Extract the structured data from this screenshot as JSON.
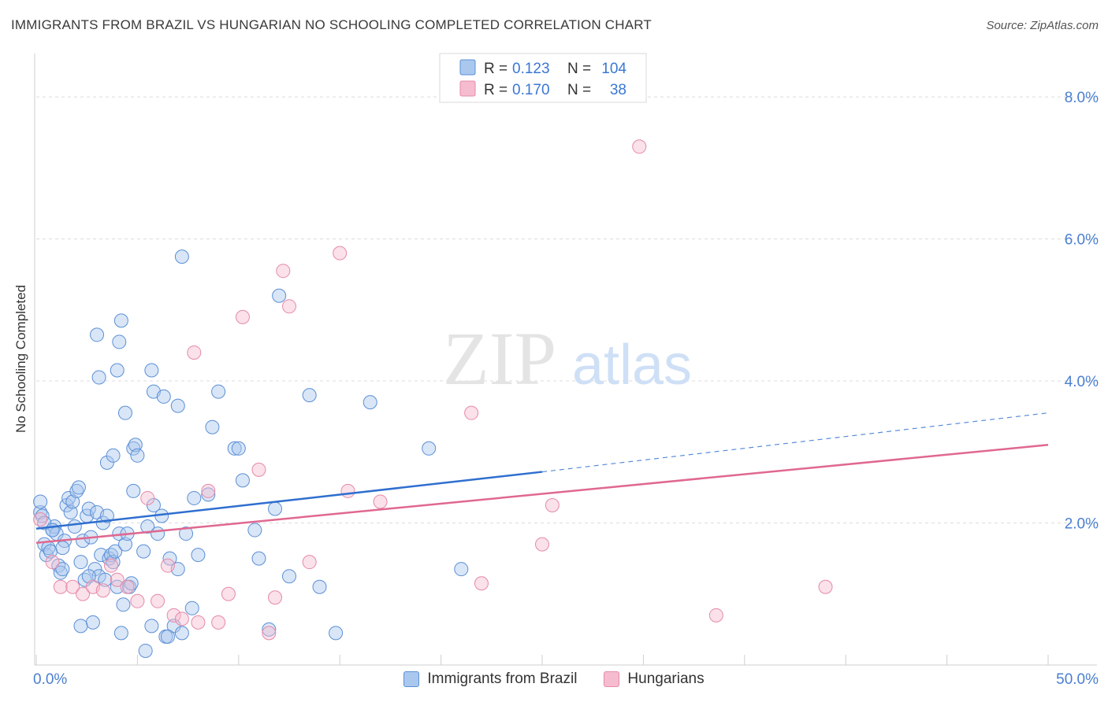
{
  "header": {
    "title": "IMMIGRANTS FROM BRAZIL VS HUNGARIAN NO SCHOOLING COMPLETED CORRELATION CHART",
    "source": "Source: ZipAtlas.com"
  },
  "watermark": {
    "zip": "ZIP",
    "atlas": "atlas"
  },
  "colors": {
    "blue_fill": "#aac8ee",
    "blue_stroke": "#5b8fd6",
    "blue_line": "#2f6fcf",
    "pink_fill": "#f5bcd0",
    "pink_stroke": "#e68aa8",
    "pink_line": "#e06890",
    "axis_label": "#4a7fd0",
    "grid": "#dcdcdc"
  },
  "legend": {
    "rows": [
      {
        "r_label": "R =",
        "r_value": "0.123",
        "n_label": "N =",
        "n_value": "104"
      },
      {
        "r_label": "R =",
        "r_value": "0.170",
        "n_label": "N =",
        "n_value": "38"
      }
    ],
    "placement": "top-center"
  },
  "chart_data": {
    "type": "scatter",
    "title": "IMMIGRANTS FROM BRAZIL VS HUNGARIAN NO SCHOOLING COMPLETED CORRELATION CHART",
    "xlabel": "",
    "ylabel": "No Schooling Completed",
    "xlim": [
      0,
      50
    ],
    "ylim": [
      0,
      8.5
    ],
    "x_tick_labels": [
      "0.0%",
      "50.0%"
    ],
    "y_ticks": [
      2,
      4,
      6,
      8
    ],
    "y_tick_labels": [
      "2.0%",
      "4.0%",
      "6.0%",
      "8.0%"
    ],
    "grid": true,
    "series": [
      {
        "name": "Immigrants from Brazil",
        "r": 0.123,
        "n": 104,
        "trend": {
          "x0": 0,
          "y0": 1.92,
          "x1": 25,
          "y1": 2.72,
          "dash_to_x": 50,
          "dash_to_y": 3.55
        },
        "points": [
          [
            0.2,
            2.15
          ],
          [
            0.3,
            2.1
          ],
          [
            0.2,
            2.3
          ],
          [
            0.4,
            1.7
          ],
          [
            0.5,
            1.55
          ],
          [
            0.6,
            1.65
          ],
          [
            0.7,
            1.6
          ],
          [
            0.8,
            1.9
          ],
          [
            0.9,
            1.95
          ],
          [
            1.0,
            1.85
          ],
          [
            1.1,
            1.4
          ],
          [
            1.2,
            1.3
          ],
          [
            1.3,
            1.35
          ],
          [
            1.4,
            1.75
          ],
          [
            1.5,
            2.25
          ],
          [
            1.6,
            2.35
          ],
          [
            1.7,
            2.15
          ],
          [
            1.8,
            2.3
          ],
          [
            1.9,
            1.95
          ],
          [
            2.0,
            2.45
          ],
          [
            2.1,
            2.5
          ],
          [
            2.2,
            1.45
          ],
          [
            2.3,
            1.75
          ],
          [
            2.4,
            1.2
          ],
          [
            2.5,
            2.1
          ],
          [
            2.6,
            2.2
          ],
          [
            2.7,
            1.8
          ],
          [
            2.8,
            0.6
          ],
          [
            2.9,
            1.35
          ],
          [
            3.0,
            2.15
          ],
          [
            3.1,
            1.25
          ],
          [
            3.2,
            1.55
          ],
          [
            3.3,
            2.0
          ],
          [
            3.4,
            1.2
          ],
          [
            3.5,
            2.1
          ],
          [
            3.6,
            1.5
          ],
          [
            3.7,
            1.55
          ],
          [
            3.8,
            1.45
          ],
          [
            3.9,
            1.6
          ],
          [
            4.0,
            1.1
          ],
          [
            4.1,
            1.85
          ],
          [
            4.2,
            0.45
          ],
          [
            4.3,
            0.85
          ],
          [
            4.4,
            1.7
          ],
          [
            4.5,
            1.85
          ],
          [
            4.6,
            1.1
          ],
          [
            4.7,
            1.15
          ],
          [
            4.8,
            3.05
          ],
          [
            4.9,
            3.1
          ],
          [
            5.0,
            2.95
          ],
          [
            5.3,
            1.6
          ],
          [
            5.5,
            1.95
          ],
          [
            5.7,
            0.55
          ],
          [
            5.8,
            2.25
          ],
          [
            6.0,
            1.85
          ],
          [
            6.2,
            2.1
          ],
          [
            6.4,
            0.4
          ],
          [
            6.6,
            1.5
          ],
          [
            6.8,
            0.55
          ],
          [
            7.0,
            1.35
          ],
          [
            7.2,
            0.45
          ],
          [
            7.4,
            1.85
          ],
          [
            7.7,
            0.8
          ],
          [
            8.0,
            1.55
          ],
          [
            3.0,
            4.65
          ],
          [
            3.1,
            4.05
          ],
          [
            4.0,
            4.15
          ],
          [
            4.1,
            4.55
          ],
          [
            4.2,
            4.85
          ],
          [
            4.4,
            3.55
          ],
          [
            5.7,
            4.15
          ],
          [
            5.8,
            3.85
          ],
          [
            6.3,
            3.78
          ],
          [
            7.0,
            3.65
          ],
          [
            7.2,
            5.75
          ],
          [
            7.8,
            2.35
          ],
          [
            8.5,
            2.4
          ],
          [
            8.7,
            3.35
          ],
          [
            9.0,
            3.85
          ],
          [
            9.8,
            3.05
          ],
          [
            10.0,
            3.05
          ],
          [
            10.2,
            2.6
          ],
          [
            10.8,
            1.9
          ],
          [
            11.0,
            1.5
          ],
          [
            11.5,
            0.5
          ],
          [
            11.8,
            2.2
          ],
          [
            12.0,
            5.2
          ],
          [
            12.5,
            1.25
          ],
          [
            13.5,
            3.8
          ],
          [
            14.0,
            1.1
          ],
          [
            14.8,
            0.45
          ],
          [
            16.5,
            3.7
          ],
          [
            19.4,
            3.05
          ],
          [
            21.0,
            1.35
          ],
          [
            3.5,
            2.85
          ],
          [
            3.8,
            2.95
          ],
          [
            4.8,
            2.45
          ],
          [
            5.4,
            0.2
          ],
          [
            6.5,
            0.4
          ],
          [
            2.2,
            0.55
          ],
          [
            1.3,
            1.65
          ],
          [
            0.4,
            2.0
          ],
          [
            0.8,
            1.9
          ],
          [
            2.6,
            1.25
          ]
        ]
      },
      {
        "name": "Hungarians",
        "r": 0.17,
        "n": 38,
        "trend": {
          "x0": 0,
          "y0": 1.72,
          "x1": 50,
          "y1": 3.1
        },
        "points": [
          [
            0.2,
            2.05
          ],
          [
            0.8,
            1.45
          ],
          [
            1.2,
            1.1
          ],
          [
            1.8,
            1.1
          ],
          [
            2.3,
            1.0
          ],
          [
            2.8,
            1.1
          ],
          [
            3.3,
            1.05
          ],
          [
            3.7,
            1.4
          ],
          [
            4.0,
            1.2
          ],
          [
            4.5,
            1.1
          ],
          [
            5.0,
            0.9
          ],
          [
            5.5,
            2.35
          ],
          [
            6.0,
            0.9
          ],
          [
            6.5,
            1.4
          ],
          [
            6.8,
            0.7
          ],
          [
            7.2,
            0.65
          ],
          [
            7.8,
            4.4
          ],
          [
            8.0,
            0.6
          ],
          [
            8.5,
            2.45
          ],
          [
            9.0,
            0.6
          ],
          [
            9.5,
            1.0
          ],
          [
            10.2,
            4.9
          ],
          [
            11.0,
            2.75
          ],
          [
            11.5,
            0.45
          ],
          [
            11.8,
            0.95
          ],
          [
            12.2,
            5.55
          ],
          [
            12.5,
            5.05
          ],
          [
            13.5,
            1.45
          ],
          [
            15.0,
            5.8
          ],
          [
            15.4,
            2.45
          ],
          [
            17.0,
            2.3
          ],
          [
            21.5,
            3.55
          ],
          [
            22.0,
            1.15
          ],
          [
            25.0,
            1.7
          ],
          [
            25.5,
            2.25
          ],
          [
            29.8,
            7.3
          ],
          [
            33.6,
            0.7
          ],
          [
            39.0,
            1.1
          ]
        ]
      }
    ]
  }
}
